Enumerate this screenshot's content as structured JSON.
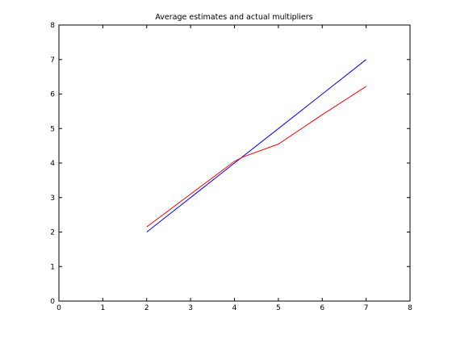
{
  "chart_data": {
    "type": "line",
    "title": "Average estimates and actual multipliers",
    "xlabel": "",
    "ylabel": "",
    "xlim": [
      0,
      8
    ],
    "ylim": [
      0,
      8
    ],
    "xticks": [
      "0",
      "1",
      "2",
      "3",
      "4",
      "5",
      "6",
      "7",
      "8"
    ],
    "yticks": [
      "0",
      "1",
      "2",
      "3",
      "4",
      "5",
      "6",
      "7",
      "8"
    ],
    "grid": false,
    "legend": "none",
    "series": [
      {
        "color": "#0000ff",
        "x": [
          2,
          3,
          4,
          5,
          6,
          7
        ],
        "y": [
          2,
          3,
          4,
          5,
          6,
          7
        ]
      },
      {
        "color": "#ff0000",
        "x": [
          2,
          3,
          4,
          4.2,
          5,
          6,
          7
        ],
        "y": [
          2.15,
          3.1,
          4.05,
          4.18,
          4.55,
          5.4,
          6.22
        ]
      }
    ]
  }
}
